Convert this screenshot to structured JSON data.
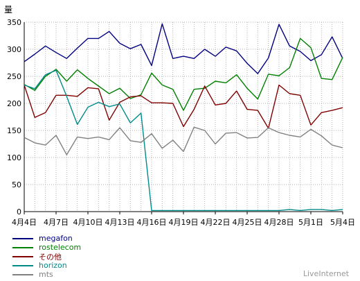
{
  "chart_data": {
    "type": "line",
    "ylabel": "量",
    "ylim": [
      0,
      350
    ],
    "y_ticks": [
      0,
      50,
      100,
      150,
      200,
      250,
      300,
      350
    ],
    "x_tick_labels": [
      "4月4日",
      "4月7日",
      "4月10日",
      "4月13日",
      "4月16日",
      "4月19日",
      "4月22日",
      "4月25日",
      "4月28日",
      "5月1日",
      "5月4日"
    ],
    "categories": [
      "4/4",
      "4/5",
      "4/6",
      "4/7",
      "4/8",
      "4/9",
      "4/10",
      "4/11",
      "4/12",
      "4/13",
      "4/14",
      "4/15",
      "4/16",
      "4/17",
      "4/18",
      "4/19",
      "4/20",
      "4/21",
      "4/22",
      "4/23",
      "4/24",
      "4/25",
      "4/26",
      "4/27",
      "4/28",
      "4/29",
      "4/30",
      "5/1",
      "5/2",
      "5/3",
      "5/4"
    ],
    "grid": true,
    "legend_position": "bottom-left",
    "series": [
      {
        "name": "megafon",
        "color": "#000080",
        "values": [
          277,
          291,
          306,
          294,
          283,
          302,
          320,
          320,
          333,
          311,
          301,
          309,
          270,
          347,
          283,
          287,
          283,
          300,
          287,
          304,
          297,
          274,
          255,
          284,
          346,
          306,
          296,
          279,
          290,
          323,
          283
        ]
      },
      {
        "name": "rostelecom",
        "color": "#008000",
        "values": [
          235,
          224,
          250,
          263,
          241,
          262,
          246,
          232,
          218,
          228,
          209,
          216,
          256,
          234,
          226,
          187,
          226,
          228,
          241,
          238,
          253,
          228,
          208,
          254,
          251,
          266,
          320,
          303,
          246,
          244,
          285
        ]
      },
      {
        "name": "その他",
        "color": "#800000",
        "values": [
          234,
          174,
          183,
          215,
          215,
          213,
          229,
          227,
          169,
          202,
          212,
          214,
          201,
          201,
          200,
          157,
          189,
          232,
          197,
          200,
          223,
          189,
          187,
          154,
          234,
          218,
          215,
          160,
          183,
          187,
          192
        ]
      },
      {
        "name": "horizon",
        "color": "#008B8B",
        "values": [
          234,
          227,
          253,
          261,
          213,
          161,
          193,
          202,
          194,
          199,
          164,
          182,
          2,
          2,
          2,
          2,
          2,
          2,
          2,
          2,
          2,
          2,
          2,
          2,
          2,
          4,
          2,
          4,
          4,
          2,
          4
        ]
      },
      {
        "name": "mts",
        "color": "#808080",
        "values": [
          137,
          127,
          123,
          141,
          105,
          138,
          135,
          138,
          133,
          155,
          131,
          128,
          144,
          117,
          132,
          111,
          156,
          150,
          125,
          145,
          146,
          136,
          137,
          155,
          146,
          141,
          138,
          152,
          140,
          123,
          118
        ]
      }
    ]
  },
  "branding": "LiveInternet"
}
